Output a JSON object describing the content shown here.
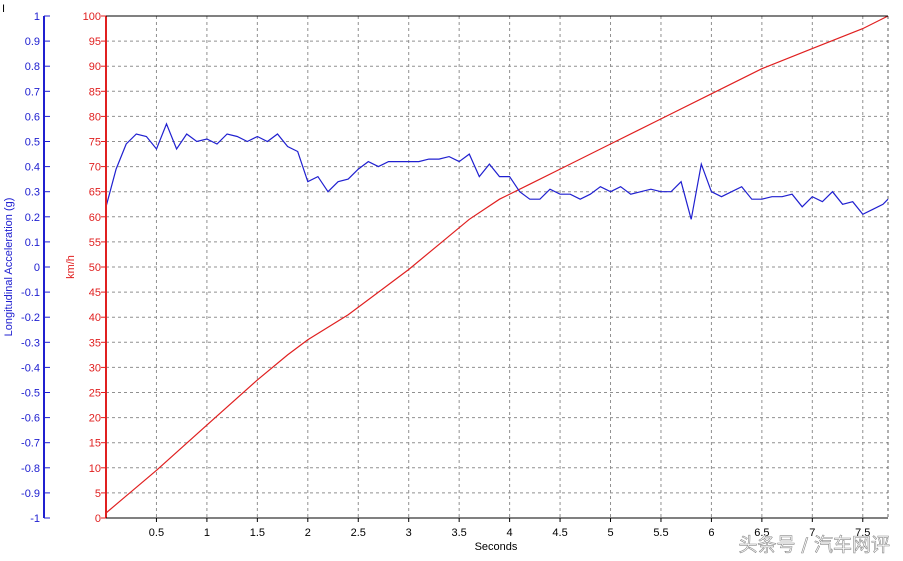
{
  "chart_data": {
    "type": "line",
    "title": "",
    "xlabel": "Seconds",
    "xlim": [
      0,
      7.75
    ],
    "x_ticks": [
      "0.5",
      "1",
      "1.5",
      "2",
      "2.5",
      "3",
      "3.5",
      "4",
      "4.5",
      "5",
      "5.5",
      "6",
      "6.5",
      "7",
      "7.5"
    ],
    "grid": true,
    "axes": {
      "left": {
        "label": "Longitudinal Acceleration (g)",
        "ylim": [
          -1,
          1
        ],
        "color": "#2020d0",
        "ticks": [
          "1",
          "0.9",
          "0.8",
          "0.7",
          "0.6",
          "0.5",
          "0.4",
          "0.3",
          "0.2",
          "0.1",
          "0",
          "-0.1",
          "-0.2",
          "-0.3",
          "-0.4",
          "-0.5",
          "-0.6",
          "-0.7",
          "-0.8",
          "-0.9",
          "-1"
        ]
      },
      "right_inner": {
        "label": "km/h",
        "ylim": [
          0,
          100
        ],
        "color": "#e02020",
        "ticks": [
          "100",
          "95",
          "90",
          "85",
          "80",
          "75",
          "70",
          "65",
          "60",
          "55",
          "50",
          "45",
          "40",
          "35",
          "30",
          "25",
          "20",
          "15",
          "10",
          "5",
          "0"
        ]
      }
    },
    "series": [
      {
        "axis": "right_inner",
        "color": "#e02020",
        "x": [
          0,
          0.5,
          1,
          1.5,
          1.8,
          2.0,
          2.4,
          2.8,
          3.0,
          3.3,
          3.6,
          3.9,
          4.2,
          4.5,
          5.0,
          5.5,
          6.0,
          6.5,
          7.0,
          7.5,
          7.75
        ],
        "y": [
          1,
          9.5,
          18.5,
          27.5,
          32.5,
          35.5,
          40.5,
          46.5,
          49.5,
          54.5,
          59.5,
          63.5,
          66.5,
          69.5,
          74.5,
          79.5,
          84.5,
          89.5,
          93.5,
          97.5,
          100
        ]
      },
      {
        "axis": "left",
        "color": "#2020d0",
        "x": [
          0,
          0.1,
          0.2,
          0.3,
          0.4,
          0.5,
          0.6,
          0.7,
          0.8,
          0.9,
          1.0,
          1.1,
          1.2,
          1.3,
          1.4,
          1.5,
          1.6,
          1.7,
          1.8,
          1.9,
          2.0,
          2.1,
          2.2,
          2.3,
          2.4,
          2.5,
          2.6,
          2.7,
          2.8,
          2.9,
          3.0,
          3.1,
          3.2,
          3.3,
          3.4,
          3.5,
          3.6,
          3.7,
          3.8,
          3.9,
          4.0,
          4.1,
          4.2,
          4.3,
          4.4,
          4.5,
          4.6,
          4.7,
          4.8,
          4.9,
          5.0,
          5.1,
          5.2,
          5.3,
          5.4,
          5.5,
          5.6,
          5.7,
          5.8,
          5.9,
          6.0,
          6.1,
          6.2,
          6.3,
          6.4,
          6.5,
          6.6,
          6.7,
          6.8,
          6.9,
          7.0,
          7.1,
          7.2,
          7.3,
          7.4,
          7.5,
          7.6,
          7.7,
          7.75
        ],
        "y": [
          0.24,
          0.39,
          0.49,
          0.53,
          0.52,
          0.47,
          0.57,
          0.47,
          0.53,
          0.5,
          0.51,
          0.49,
          0.53,
          0.52,
          0.5,
          0.52,
          0.5,
          0.53,
          0.48,
          0.46,
          0.34,
          0.36,
          0.3,
          0.34,
          0.35,
          0.39,
          0.42,
          0.4,
          0.42,
          0.42,
          0.42,
          0.42,
          0.43,
          0.43,
          0.44,
          0.42,
          0.45,
          0.36,
          0.41,
          0.36,
          0.36,
          0.3,
          0.27,
          0.27,
          0.31,
          0.29,
          0.29,
          0.27,
          0.29,
          0.32,
          0.3,
          0.32,
          0.29,
          0.3,
          0.31,
          0.3,
          0.3,
          0.34,
          0.19,
          0.41,
          0.3,
          0.28,
          0.3,
          0.32,
          0.27,
          0.27,
          0.28,
          0.28,
          0.29,
          0.24,
          0.28,
          0.26,
          0.3,
          0.25,
          0.26,
          0.21,
          0.23,
          0.25,
          0.27
        ]
      }
    ]
  },
  "watermark": {
    "text": "头条号 / 汽车网评"
  },
  "corner_mark": "I"
}
